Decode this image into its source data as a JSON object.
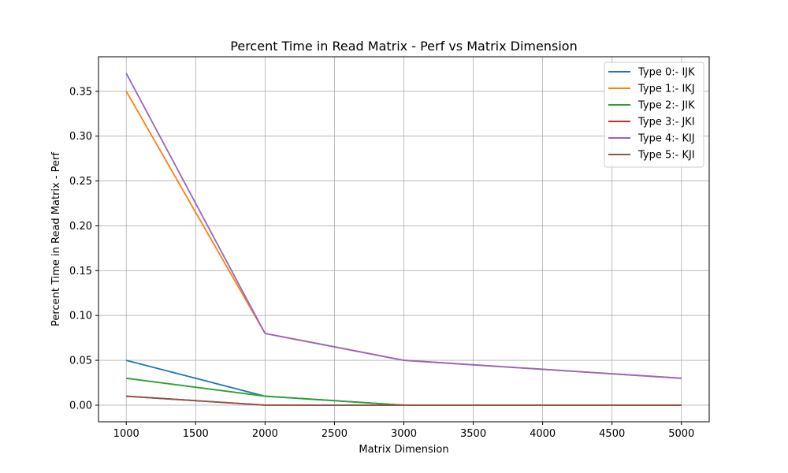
{
  "chart_data": {
    "type": "line",
    "title": "Percent Time in Read Matrix - Perf vs Matrix Dimension",
    "xlabel": "Matrix Dimension",
    "ylabel": "Percent Time in Read Matrix - Perf",
    "x": [
      1000,
      2000,
      3000,
      4000,
      5000
    ],
    "xlim": [
      800,
      5200
    ],
    "ylim": [
      -0.0185,
      0.3885
    ],
    "xticks": [
      1000,
      1500,
      2000,
      2500,
      3000,
      3500,
      4000,
      4500,
      5000
    ],
    "xtick_labels": [
      "1000",
      "1500",
      "2000",
      "2500",
      "3000",
      "3500",
      "4000",
      "4500",
      "5000"
    ],
    "yticks": [
      0.0,
      0.05,
      0.1,
      0.15,
      0.2,
      0.25,
      0.3,
      0.35
    ],
    "ytick_labels": [
      "0.00",
      "0.05",
      "0.10",
      "0.15",
      "0.20",
      "0.25",
      "0.30",
      "0.35"
    ],
    "grid": true,
    "legend_position": "top-right",
    "series": [
      {
        "name": "Type 0:- IJK",
        "color": "#1f77b4",
        "values": [
          0.05,
          0.01,
          0.0,
          0.0,
          0.0
        ]
      },
      {
        "name": "Type 1:- IKJ",
        "color": "#ff7f0e",
        "values": [
          0.35,
          0.08,
          0.05,
          0.04,
          0.03
        ]
      },
      {
        "name": "Type 2:- JIK",
        "color": "#2ca02c",
        "values": [
          0.03,
          0.01,
          0.0,
          0.0,
          0.0
        ]
      },
      {
        "name": "Type 3:- JKI",
        "color": "#d62728",
        "values": [
          0.01,
          0.0,
          0.0,
          0.0,
          0.0
        ]
      },
      {
        "name": "Type 4:- KIJ",
        "color": "#9467bd",
        "values": [
          0.37,
          0.08,
          0.05,
          0.04,
          0.03
        ]
      },
      {
        "name": "Type 5:- KJI",
        "color": "#8c564b",
        "values": [
          0.01,
          0.0,
          0.0,
          0.0,
          0.0
        ]
      }
    ]
  }
}
